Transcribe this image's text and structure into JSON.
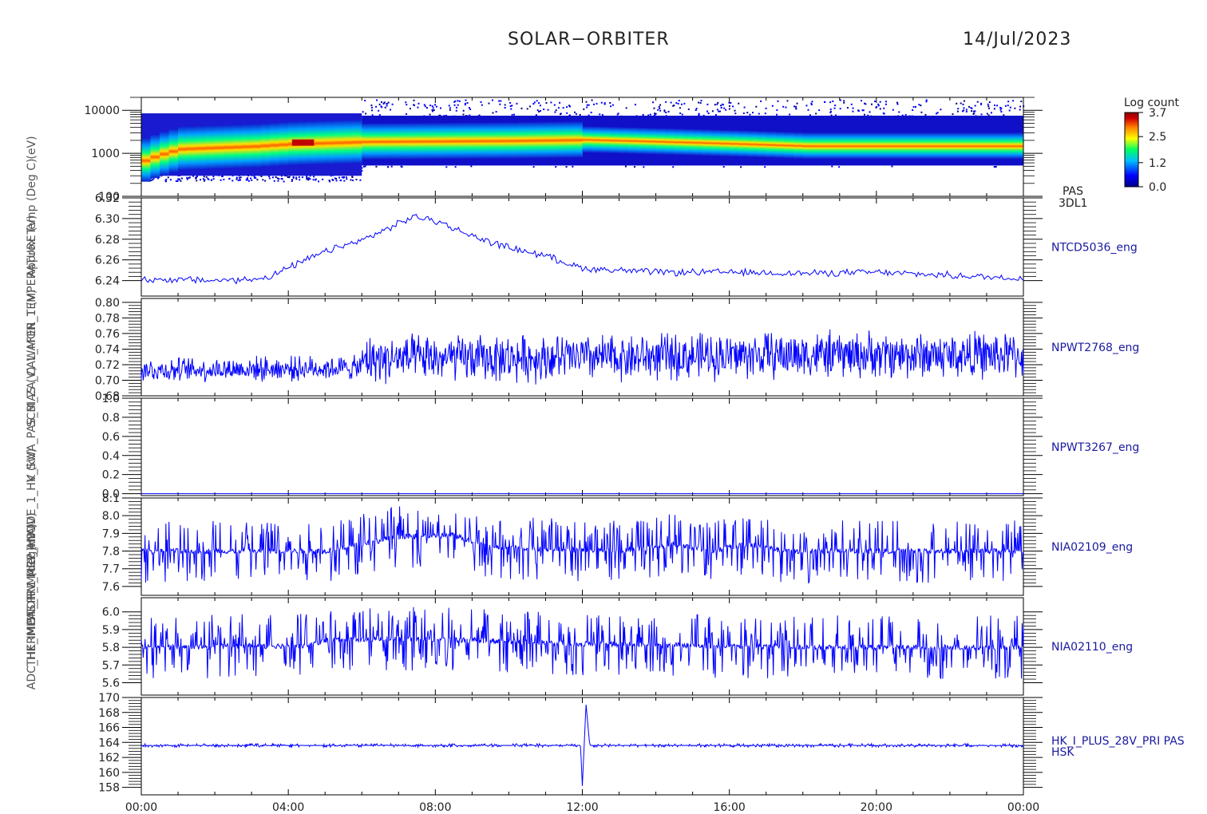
{
  "header": {
    "mission": "SOLAR−ORBITER",
    "date": "14/Jul/2023"
  },
  "colors": {
    "trace": "#0000ff",
    "axis": "#000000",
    "label_right": "#1a1aa0",
    "colorbar": [
      "#00008a",
      "#0000ff",
      "#00bfff",
      "#00ff60",
      "#ffff00",
      "#ff8000",
      "#d00000",
      "#8b0000"
    ]
  },
  "chart_data": [
    {
      "type": "heatmap",
      "panel_label": [
        "PAS",
        "3DL1"
      ],
      "y_scale": "log",
      "ylim": [
        100,
        20000
      ],
      "y_ticks": [
        "100",
        "1000",
        "10000"
      ],
      "colorbar": {
        "title": "Log count",
        "ticks": [
          "3.7",
          "2.5",
          "1.2",
          "0.0"
        ],
        "range": [
          0.0,
          3.7
        ]
      },
      "ridge_energy_eV": [
        {
          "t": 0,
          "e": 700
        },
        {
          "t": 1,
          "e": 1300
        },
        {
          "t": 2,
          "e": 1400
        },
        {
          "t": 3,
          "e": 1500
        },
        {
          "t": 4,
          "e": 1700
        },
        {
          "t": 5,
          "e": 1800
        },
        {
          "t": 6,
          "e": 1900
        },
        {
          "t": 8,
          "e": 1950
        },
        {
          "t": 10,
          "e": 2000
        },
        {
          "t": 12,
          "e": 2100
        },
        {
          "t": 14,
          "e": 1900
        },
        {
          "t": 16,
          "e": 1700
        },
        {
          "t": 18,
          "e": 1500
        },
        {
          "t": 20,
          "e": 1500
        },
        {
          "t": 22,
          "e": 1500
        },
        {
          "t": 24,
          "e": 1500
        }
      ]
    },
    {
      "type": "line",
      "series_label": "NTCD5036_eng",
      "ylim": [
        6.225,
        6.32
      ],
      "y_ticks": [
        "6.24",
        "6.26",
        "6.28",
        "6.30",
        "6.32"
      ],
      "y_tick_values": [
        6.24,
        6.26,
        6.28,
        6.3,
        6.32
      ],
      "points": [
        {
          "t": 0,
          "v": 6.241
        },
        {
          "t": 1,
          "v": 6.241
        },
        {
          "t": 2,
          "v": 6.24
        },
        {
          "t": 3,
          "v": 6.241
        },
        {
          "t": 3.5,
          "v": 6.244
        },
        {
          "t": 4,
          "v": 6.252
        },
        {
          "t": 5,
          "v": 6.268
        },
        {
          "t": 6,
          "v": 6.279
        },
        {
          "t": 7,
          "v": 6.295
        },
        {
          "t": 7.4,
          "v": 6.302
        },
        {
          "t": 8,
          "v": 6.298
        },
        {
          "t": 9,
          "v": 6.283
        },
        {
          "t": 10,
          "v": 6.272
        },
        {
          "t": 11,
          "v": 6.264
        },
        {
          "t": 12,
          "v": 6.252
        },
        {
          "t": 14,
          "v": 6.248
        },
        {
          "t": 16,
          "v": 6.248
        },
        {
          "t": 18,
          "v": 6.247
        },
        {
          "t": 20,
          "v": 6.248
        },
        {
          "t": 22,
          "v": 6.245
        },
        {
          "t": 24,
          "v": 6.242
        }
      ],
      "noise": 0.004
    },
    {
      "type": "line",
      "series_label": "NPWT2768_eng",
      "ylim": [
        0.68,
        0.805
      ],
      "y_ticks": [
        "0.68",
        "0.70",
        "0.72",
        "0.74",
        "0.76",
        "0.78",
        "0.80"
      ],
      "y_tick_values": [
        0.68,
        0.7,
        0.72,
        0.74,
        0.76,
        0.78,
        0.8
      ],
      "points": [
        {
          "t": 0,
          "v": 0.713
        },
        {
          "t": 6,
          "v": 0.716
        },
        {
          "t": 6.05,
          "v": 0.727
        },
        {
          "t": 12,
          "v": 0.729
        },
        {
          "t": 14,
          "v": 0.73
        },
        {
          "t": 18,
          "v": 0.733
        },
        {
          "t": 24,
          "v": 0.732
        }
      ],
      "noise_before_06": 0.018,
      "noise_after_06": 0.035
    },
    {
      "type": "line",
      "series_label": "NPWT3267_eng",
      "ylim": [
        -0.02,
        1.0
      ],
      "y_ticks": [
        "0.0",
        "0.2",
        "0.4",
        "0.6",
        "0.8",
        "1.0"
      ],
      "y_tick_values": [
        0.0,
        0.2,
        0.4,
        0.6,
        0.8,
        1.0
      ],
      "points": [
        {
          "t": 0,
          "v": 0.0
        },
        {
          "t": 24,
          "v": 0.0
        }
      ]
    },
    {
      "type": "line",
      "series_label": "NIA02109_eng",
      "ylim": [
        7.55,
        8.1
      ],
      "y_ticks": [
        "7.6",
        "7.7",
        "7.8",
        "7.9",
        "8.0",
        "8.1"
      ],
      "y_tick_values": [
        7.6,
        7.7,
        7.8,
        7.9,
        8.0,
        8.1
      ],
      "points": [
        {
          "t": 0,
          "v": 7.8
        },
        {
          "t": 5,
          "v": 7.8
        },
        {
          "t": 6,
          "v": 7.84
        },
        {
          "t": 7,
          "v": 7.88
        },
        {
          "t": 8.5,
          "v": 7.89
        },
        {
          "t": 9.5,
          "v": 7.82
        },
        {
          "t": 13,
          "v": 7.8
        },
        {
          "t": 14.5,
          "v": 7.84
        },
        {
          "t": 15.5,
          "v": 7.8
        },
        {
          "t": 16.5,
          "v": 7.84
        },
        {
          "t": 17.5,
          "v": 7.8
        },
        {
          "t": 24,
          "v": 7.8
        }
      ],
      "noise": 0.12
    },
    {
      "type": "line",
      "series_label": "NIA02110_eng",
      "ylim": [
        5.53,
        6.08
      ],
      "y_ticks": [
        "5.6",
        "5.7",
        "5.8",
        "5.9",
        "6.0"
      ],
      "y_tick_values": [
        5.6,
        5.7,
        5.8,
        5.9,
        6.0
      ],
      "points": [
        {
          "t": 0,
          "v": 5.8
        },
        {
          "t": 4.5,
          "v": 5.81
        },
        {
          "t": 5,
          "v": 5.84
        },
        {
          "t": 7,
          "v": 5.85
        },
        {
          "t": 9,
          "v": 5.84
        },
        {
          "t": 12,
          "v": 5.82
        },
        {
          "t": 18,
          "v": 5.8
        },
        {
          "t": 24,
          "v": 5.8
        }
      ],
      "noise": 0.12
    },
    {
      "type": "line",
      "series_label": [
        "HK_I_PLUS_28V_PRI PAS",
        "HSK"
      ],
      "ylim": [
        157,
        170
      ],
      "y_ticks": [
        "158",
        "160",
        "162",
        "164",
        "166",
        "168",
        "170"
      ],
      "y_tick_values": [
        158,
        160,
        162,
        164,
        166,
        168,
        170
      ],
      "points": [
        {
          "t": 0,
          "v": 163.6
        },
        {
          "t": 11.95,
          "v": 163.6
        },
        {
          "t": 12.0,
          "v": 158.2
        },
        {
          "t": 12.1,
          "v": 169.2
        },
        {
          "t": 12.2,
          "v": 163.6
        },
        {
          "t": 24,
          "v": 163.6
        }
      ],
      "noise": 0.15
    }
  ],
  "x_axis": {
    "ticks": [
      "00:00",
      "04:00",
      "08:00",
      "12:00",
      "16:00",
      "20:00",
      "00:00"
    ],
    "tick_hours": [
      0,
      4,
      8,
      12,
      16,
      20,
      24
    ]
  },
  "left_label": {
    "rotated_stack": [
      "(eV)",
      "Approx Temp (Deg C)",
      "WAFER_TEMPERATURE (V)",
      "SCM_ZA_CAL_MON_1 (V)",
      "HK_SWA_PAS_BIAS (V)",
      "ANODE_1_HV (kV)",
      "PAS_HV_MCP_HP (V)",
      "THERMISTOR_1 (deg)",
      "ADC_HK_IMON_PRIMARY (mA)"
    ]
  }
}
